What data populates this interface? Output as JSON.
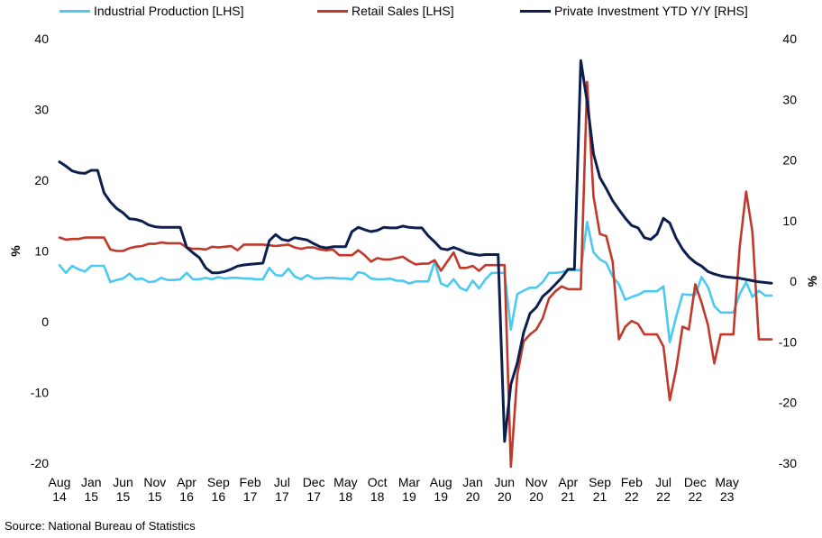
{
  "chart_data": {
    "type": "line",
    "x_labels": [
      [
        "Aug",
        "14"
      ],
      [
        "Jan",
        "15"
      ],
      [
        "Jun",
        "15"
      ],
      [
        "Nov",
        "15"
      ],
      [
        "Apr",
        "16"
      ],
      [
        "Sep",
        "16"
      ],
      [
        "Feb",
        "17"
      ],
      [
        "Jul",
        "17"
      ],
      [
        "Dec",
        "17"
      ],
      [
        "May",
        "18"
      ],
      [
        "Oct",
        "18"
      ],
      [
        "Mar",
        "19"
      ],
      [
        "Aug",
        "19"
      ],
      [
        "Jan",
        "20"
      ],
      [
        "Jun",
        "20"
      ],
      [
        "Nov",
        "20"
      ],
      [
        "Apr",
        "21"
      ],
      [
        "Sep",
        "21"
      ],
      [
        "Feb",
        "22"
      ],
      [
        "Jul",
        "22"
      ],
      [
        "Dec",
        "22"
      ],
      [
        "May",
        "23"
      ]
    ],
    "x_start": "2014-08",
    "y_left": {
      "label": "%",
      "min": -20,
      "max": 40,
      "ticks": [
        40,
        30,
        20,
        10,
        0,
        -10,
        -20
      ]
    },
    "y_right": {
      "label": "%",
      "min": -30,
      "max": 40,
      "ticks": [
        40,
        30,
        20,
        10,
        0,
        -10,
        -20,
        -30
      ]
    },
    "series": [
      {
        "name": "Industrial Production [LHS]",
        "color": "#4cc9f0",
        "axis": "left",
        "values": [
          8.0,
          6.9,
          7.9,
          7.4,
          7.1,
          7.9,
          7.9,
          7.9,
          5.6,
          5.9,
          6.1,
          6.8,
          6.0,
          6.1,
          5.6,
          5.7,
          6.2,
          5.9,
          5.9,
          6.0,
          6.9,
          6.0,
          6.0,
          6.2,
          6.0,
          6.3,
          6.1,
          6.2,
          6.2,
          6.1,
          6.1,
          6.0,
          6.0,
          7.6,
          6.6,
          6.5,
          7.5,
          6.4,
          6.0,
          6.6,
          6.1,
          6.1,
          6.2,
          6.2,
          6.1,
          6.1,
          6.0,
          7.0,
          6.8,
          6.1,
          6.0,
          6.0,
          6.1,
          5.8,
          5.8,
          5.4,
          5.7,
          5.7,
          5.7,
          8.5,
          5.4,
          5.0,
          6.0,
          4.8,
          4.4,
          5.8,
          4.7,
          6.0,
          6.9,
          6.9,
          6.9,
          -1.1,
          3.9,
          4.4,
          4.8,
          4.8,
          5.6,
          6.9,
          6.9,
          7.0,
          7.3,
          7.3,
          7.3,
          14.1,
          9.8,
          8.8,
          8.3,
          6.4,
          5.3,
          3.1,
          3.5,
          3.8,
          4.3,
          4.3,
          4.3,
          5.0,
          -2.9,
          0.7,
          3.9,
          3.8,
          3.8,
          6.3,
          4.9,
          2.2,
          1.3,
          1.3,
          1.3,
          3.9,
          5.6,
          3.5,
          4.4,
          3.7,
          3.7
        ]
      },
      {
        "name": "Retail Sales [LHS]",
        "color": "#c0392b",
        "axis": "left",
        "values": [
          11.9,
          11.6,
          11.7,
          11.7,
          11.9,
          11.9,
          11.9,
          11.9,
          10.2,
          10.0,
          10.0,
          10.4,
          10.6,
          10.7,
          11.0,
          11.0,
          11.2,
          11.1,
          11.1,
          11.1,
          10.5,
          10.3,
          10.3,
          10.2,
          10.6,
          10.5,
          10.6,
          10.7,
          10.1,
          10.9,
          10.9,
          10.9,
          10.9,
          10.8,
          10.7,
          10.8,
          10.9,
          10.5,
          10.3,
          10.5,
          10.5,
          10.2,
          10.1,
          10.2,
          9.4,
          9.4,
          9.4,
          10.1,
          9.4,
          8.5,
          9.0,
          8.8,
          8.8,
          9.0,
          9.2,
          8.6,
          8.1,
          8.2,
          8.2,
          8.7,
          7.2,
          8.5,
          9.8,
          7.6,
          7.6,
          7.9,
          7.2,
          8.0,
          8.0,
          8.0,
          8.0,
          -20.5,
          -7.5,
          -2.8,
          -1.8,
          -1.1,
          0.5,
          3.3,
          4.3,
          5.0,
          4.6,
          4.6,
          4.6,
          33.9,
          17.7,
          12.4,
          12.1,
          8.5,
          -2.5,
          -0.7,
          0.1,
          -0.3,
          -1.8,
          -1.8,
          -1.8,
          -3.5,
          -11.1,
          -6.7,
          -0.7,
          -1.1,
          5.3,
          2.7,
          -0.5,
          -5.9,
          -1.8,
          -1.8,
          -1.8,
          10.6,
          18.4,
          12.7,
          -2.5,
          -2.5,
          -2.5
        ]
      },
      {
        "name": "Private Investment YTD Y/Y [RHS]",
        "color": "#0d1f4e",
        "axis": "right",
        "values": [
          19.7,
          19.0,
          18.2,
          17.9,
          17.8,
          18.3,
          18.3,
          14.6,
          13.1,
          12.0,
          11.3,
          10.3,
          10.2,
          9.9,
          9.3,
          9.0,
          8.9,
          8.9,
          8.9,
          8.9,
          5.6,
          4.7,
          3.9,
          2.2,
          1.4,
          1.4,
          1.6,
          2.0,
          2.5,
          2.7,
          2.8,
          2.9,
          3.0,
          6.7,
          7.7,
          6.9,
          6.7,
          7.2,
          7.0,
          6.8,
          6.2,
          5.7,
          5.5,
          5.7,
          5.7,
          5.7,
          8.2,
          8.9,
          8.5,
          8.2,
          8.4,
          8.9,
          8.8,
          8.8,
          9.1,
          8.9,
          8.8,
          8.8,
          7.5,
          6.5,
          5.4,
          5.2,
          5.6,
          5.2,
          4.7,
          4.5,
          4.3,
          4.4,
          4.4,
          4.4,
          -26.4,
          -17.0,
          -13.5,
          -8.5,
          -5.3,
          -4.3,
          -2.5,
          -1.6,
          -0.5,
          0.6,
          2.0,
          2.0,
          36.4,
          29.6,
          21.0,
          17.1,
          15.3,
          13.3,
          11.8,
          10.4,
          9.2,
          8.8,
          7.2,
          6.9,
          7.8,
          10.4,
          9.6,
          7.1,
          5.3,
          4.0,
          3.1,
          2.5,
          1.6,
          1.2,
          0.9,
          0.7,
          0.6,
          0.5,
          0.3,
          0.1,
          -0.1,
          -0.2,
          -0.3
        ]
      }
    ]
  },
  "source": "Source: National Bureau of Statistics"
}
